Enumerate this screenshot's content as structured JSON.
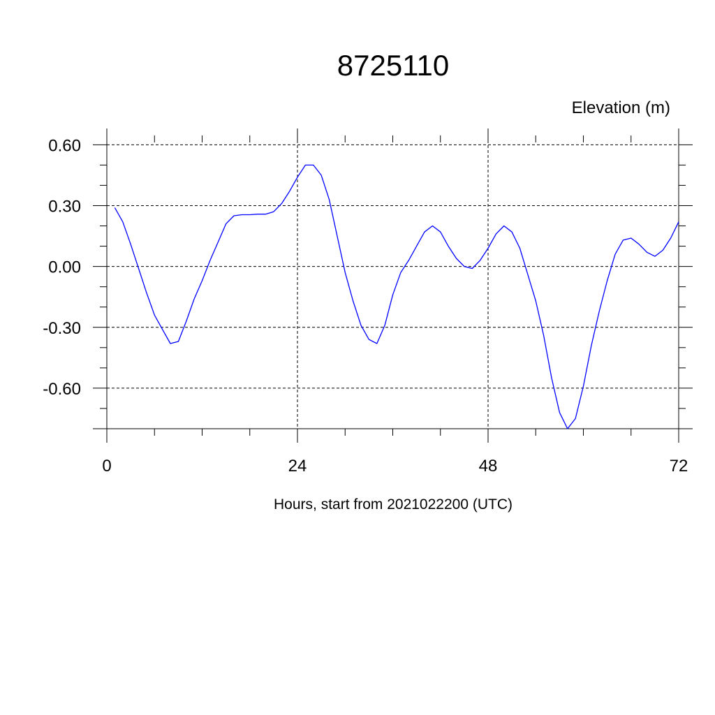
{
  "chart_data": {
    "type": "line",
    "title": "8725110",
    "ylabel": "Elevation (m)",
    "xlabel": "Hours, start from 2021022200 (UTC)",
    "xlim": [
      0,
      72
    ],
    "ylim": [
      -0.8,
      0.67
    ],
    "x_ticks": [
      0,
      24,
      48,
      72
    ],
    "x_tick_labels": [
      "0",
      "24",
      "48",
      "72"
    ],
    "y_ticks": [
      0.6,
      0.3,
      0.0,
      -0.3,
      -0.6
    ],
    "y_tick_labels": [
      "0.60",
      "0.30",
      "0.00",
      "-0.30",
      "-0.60"
    ],
    "grid": true,
    "series": [
      {
        "color": "#0000ff",
        "x": [
          1,
          2,
          3,
          4,
          5,
          6,
          7,
          8,
          9,
          10,
          11,
          12,
          13,
          14,
          15,
          16,
          17,
          18,
          19,
          20,
          21,
          22,
          23,
          24,
          25,
          26,
          27,
          28,
          29,
          30,
          31,
          32,
          33,
          34,
          35,
          36,
          37,
          38,
          39,
          40,
          41,
          42,
          43,
          44,
          45,
          46,
          47,
          48,
          49,
          50,
          51,
          52,
          53,
          54,
          55,
          56,
          57,
          58,
          59,
          60,
          61,
          62,
          63,
          64,
          65,
          66,
          67,
          68,
          69,
          70,
          71,
          72
        ],
        "y": [
          0.29,
          0.22,
          0.11,
          -0.01,
          -0.13,
          -0.24,
          -0.31,
          -0.38,
          -0.37,
          -0.27,
          -0.16,
          -0.07,
          0.03,
          0.12,
          0.21,
          0.25,
          0.255,
          0.255,
          0.258,
          0.258,
          0.27,
          0.31,
          0.37,
          0.44,
          0.5,
          0.5,
          0.45,
          0.33,
          0.15,
          -0.03,
          -0.17,
          -0.29,
          -0.36,
          -0.38,
          -0.29,
          -0.14,
          -0.03,
          0.03,
          0.1,
          0.17,
          0.2,
          0.17,
          0.1,
          0.04,
          0.0,
          -0.01,
          0.03,
          0.09,
          0.16,
          0.2,
          0.17,
          0.09,
          -0.04,
          -0.17,
          -0.34,
          -0.55,
          -0.72,
          -0.8,
          -0.75,
          -0.59,
          -0.39,
          -0.22,
          -0.07,
          0.06,
          0.13,
          0.14,
          0.11,
          0.07,
          0.05,
          0.08,
          0.14,
          0.22
        ]
      }
    ]
  }
}
